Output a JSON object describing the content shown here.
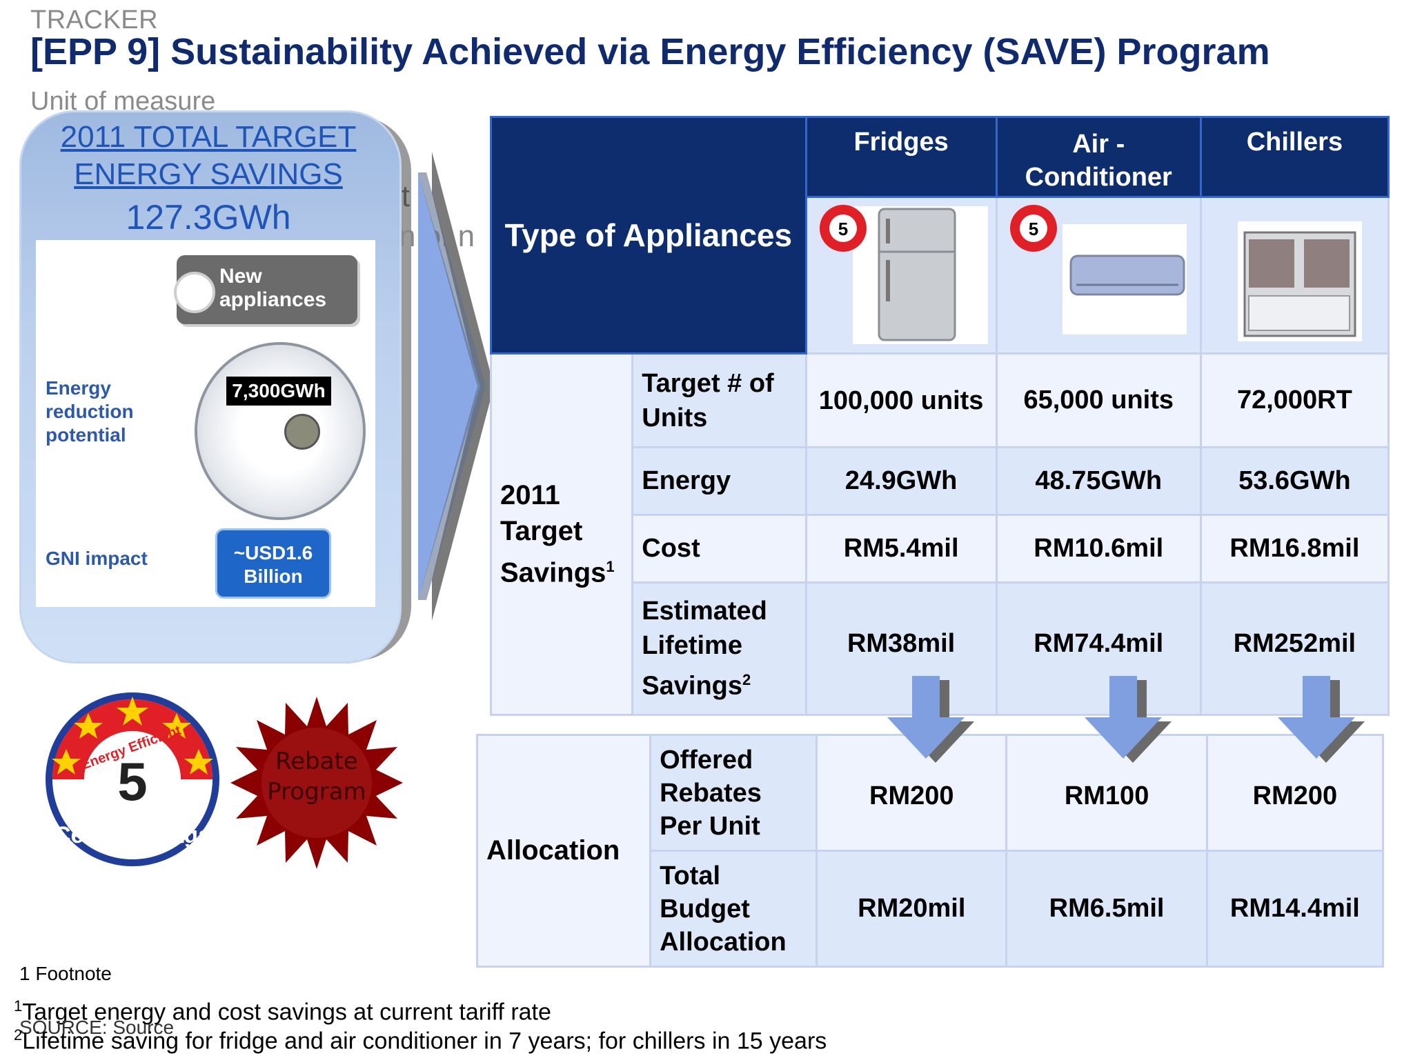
{
  "header": {
    "tracker": "TRACKER",
    "title": "[EPP 9] Sustainability Achieved via Energy Efficiency (SAVE) Program",
    "unit": "Unit of measure"
  },
  "panel": {
    "line1": "2011 TOTAL TARGET ",
    "line2": "ENERGY SAVINGS",
    "line3": "127.3GWh",
    "new_appliances": "New appliances",
    "energy_label": "Energy reduction potential",
    "meter_reading": "7,300GWh",
    "gni_label": "GNI impact",
    "gni_value": "~USD1.6 Billion",
    "ghost1": "it",
    "ghost2": "n of n"
  },
  "badges": {
    "rebate_line1": "Rebate",
    "rebate_line2": "Program",
    "badge_top": "Energy Efficient",
    "badge_number": "5",
    "badge_bottom": "Cekap Tenaga"
  },
  "colors": {
    "title": "#0f2a6e",
    "header_fill": "#0d2d6e",
    "panel_text": "#1f55b8",
    "arrow": "#7f9fe0",
    "starburst": "#8b0000"
  },
  "table": {
    "type_header": "Type of Appliances",
    "columns": [
      "Fridges",
      "Air -Conditioner",
      "Chillers"
    ],
    "savings_group": "2011 Target Savings",
    "savings_sup": "1",
    "savings_rows": [
      {
        "label": "Target # of Units",
        "sup": "",
        "values": [
          "100,000 units",
          "65,000 units",
          "72,000RT"
        ]
      },
      {
        "label": "Energy",
        "sup": "",
        "values": [
          "24.9GWh",
          "48.75GWh",
          "53.6GWh"
        ]
      },
      {
        "label": "Cost",
        "sup": "",
        "values": [
          "RM5.4mil",
          "RM10.6mil",
          "RM16.8mil"
        ]
      },
      {
        "label": "Estimated Lifetime Savings",
        "sup": "2",
        "values": [
          "RM38mil",
          "RM74.4mil",
          "RM252mil"
        ]
      }
    ],
    "allocation_group": "Allocation",
    "allocation_rows": [
      {
        "label": "Offered Rebates Per Unit",
        "values": [
          "RM200",
          "RM100",
          "RM200"
        ]
      },
      {
        "label": "Total Budget Allocation",
        "values": [
          "RM20mil",
          "RM6.5mil",
          "RM14.4mil"
        ]
      }
    ]
  },
  "footnotes": {
    "title": "1 Footnote",
    "note1_mark": "1",
    "note1": "Target energy and cost savings at current tariff rate",
    "note2_mark": "2",
    "note2": "Lifetime saving for fridge and air conditioner in 7 years; for chillers in 15 years",
    "source": "SOURCE: Source"
  }
}
